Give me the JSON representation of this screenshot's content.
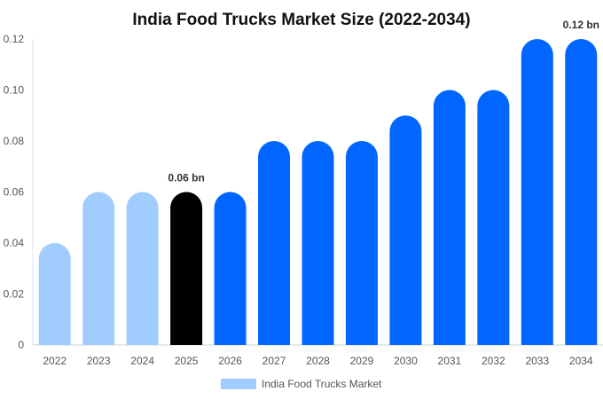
{
  "chart_data": {
    "type": "bar",
    "title": "India Food Trucks Market Size (2022-2034)",
    "categories": [
      "2022",
      "2023",
      "2024",
      "2025",
      "2026",
      "2027",
      "2028",
      "2029",
      "2030",
      "2031",
      "2032",
      "2033",
      "2034"
    ],
    "series": [
      {
        "name": "India Food Trucks Market",
        "values": [
          0.04,
          0.06,
          0.06,
          0.06,
          0.06,
          0.08,
          0.08,
          0.08,
          0.09,
          0.1,
          0.1,
          0.12,
          0.12
        ]
      }
    ],
    "ylim": [
      0,
      0.12
    ],
    "yticks": [
      "0",
      "0.02",
      "0.04",
      "0.06",
      "0.08",
      "0.10",
      "0.12"
    ],
    "ytick_values": [
      0,
      0.02,
      0.04,
      0.06,
      0.08,
      0.1,
      0.12
    ],
    "data_labels": [
      {
        "category": "2025",
        "text": "0.06 bn"
      },
      {
        "category": "2034",
        "text": "0.12 bn"
      }
    ],
    "bar_colors": [
      "#a0cdfd",
      "#a0cdfd",
      "#a0cdfd",
      "#000000",
      "#0066ff",
      "#0066ff",
      "#0066ff",
      "#0066ff",
      "#0066ff",
      "#0066ff",
      "#0066ff",
      "#0066ff",
      "#0066ff"
    ],
    "legend": {
      "position": "bottom",
      "color": "#a0cdfd"
    },
    "grid": false
  }
}
